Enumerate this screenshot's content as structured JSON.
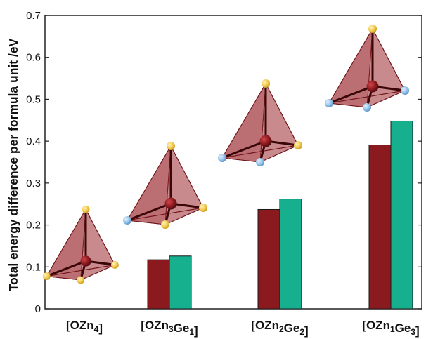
{
  "chart_data": {
    "type": "bar",
    "title": "",
    "xlabel": "",
    "ylabel": "Total energy difference per formula unit /eV",
    "ylim": [
      0,
      0.7
    ],
    "yticks": [
      "0",
      "0.1",
      "0.2",
      "0.3",
      "0.4",
      "0.5",
      "0.6",
      "0.7"
    ],
    "grid": false,
    "legend": "none",
    "categories": [
      {
        "key": "OZn4",
        "parts": [
          {
            "t": "[OZn"
          },
          {
            "t": "4",
            "sub": true
          },
          {
            "t": "]"
          }
        ]
      },
      {
        "key": "OZn3Ge1",
        "parts": [
          {
            "t": "[OZn"
          },
          {
            "t": "3",
            "sub": true
          },
          {
            "t": "Ge"
          },
          {
            "t": "1",
            "sub": true
          },
          {
            "t": "]"
          }
        ]
      },
      {
        "key": "OZn2Ge2",
        "parts": [
          {
            "t": "[OZn"
          },
          {
            "t": "2",
            "sub": true
          },
          {
            "t": "Ge"
          },
          {
            "t": "2",
            "sub": true
          },
          {
            "t": "]"
          }
        ]
      },
      {
        "key": "OZn1Ge3",
        "parts": [
          {
            "t": "[OZn"
          },
          {
            "t": "1",
            "sub": true
          },
          {
            "t": "Ge"
          },
          {
            "t": "3",
            "sub": true
          },
          {
            "t": "]"
          }
        ]
      }
    ],
    "series": [
      {
        "color": "#8B1A1E",
        "values": [
          0,
          0.117,
          0.237,
          0.391
        ]
      },
      {
        "color": "#16B08E",
        "values": [
          0,
          0.126,
          0.262,
          0.448
        ]
      }
    ],
    "insets": [
      {
        "name": "tetrahedron-ozn4",
        "ge_sites": 0
      },
      {
        "name": "tetrahedron-ozn3ge1",
        "ge_sites": 1
      },
      {
        "name": "tetrahedron-ozn2ge2",
        "ge_sites": 2
      },
      {
        "name": "tetrahedron-ozn1ge3",
        "ge_sites": 3
      }
    ],
    "atom_colors": {
      "O": "#8B1A1E",
      "Zn": "#F2C94C",
      "Ge": "#8FC1EA",
      "face": "#A0343A"
    }
  }
}
